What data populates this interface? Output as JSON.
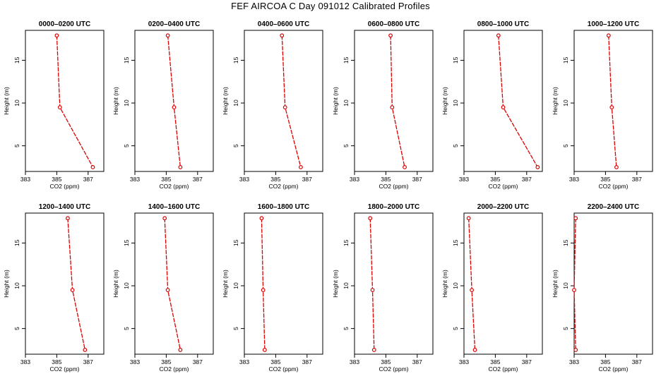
{
  "title": "FEF AIRCOA C  Day 091012  Calibrated Profiles",
  "colors": {
    "profile": "#dd0000",
    "axis": "#000000"
  },
  "chart_data": [
    {
      "type": "line",
      "title": "0000–0200 UTC",
      "xlabel": "CO2 (ppm)",
      "ylabel": "Height (m)",
      "xlim": [
        383,
        388
      ],
      "ylim": [
        2,
        18.5
      ],
      "xticks": [
        383,
        385,
        387
      ],
      "yticks": [
        5,
        10,
        15
      ],
      "series": [
        {
          "x": [
            385.0,
            385.2,
            387.3
          ],
          "y": [
            17.9,
            9.5,
            2.5
          ]
        }
      ]
    },
    {
      "type": "line",
      "title": "0200–0400 UTC",
      "xlabel": "CO2 (ppm)",
      "ylabel": "Height (m)",
      "xlim": [
        383,
        388
      ],
      "ylim": [
        2,
        18.5
      ],
      "xticks": [
        383,
        385,
        387
      ],
      "yticks": [
        5,
        10,
        15
      ],
      "series": [
        {
          "x": [
            385.1,
            385.5,
            385.9
          ],
          "y": [
            17.9,
            9.5,
            2.5
          ]
        }
      ]
    },
    {
      "type": "line",
      "title": "0400–0600 UTC",
      "xlabel": "CO2 (ppm)",
      "ylabel": "Height (m)",
      "xlim": [
        383,
        388
      ],
      "ylim": [
        2,
        18.5
      ],
      "xticks": [
        383,
        385,
        387
      ],
      "yticks": [
        5,
        10,
        15
      ],
      "series": [
        {
          "x": [
            385.4,
            385.6,
            386.6
          ],
          "y": [
            17.9,
            9.5,
            2.5
          ]
        }
      ]
    },
    {
      "type": "line",
      "title": "0600–0800 UTC",
      "xlabel": "CO2 (ppm)",
      "ylabel": "Height (m)",
      "xlim": [
        383,
        388
      ],
      "ylim": [
        2,
        18.5
      ],
      "xticks": [
        383,
        385,
        387
      ],
      "yticks": [
        5,
        10,
        15
      ],
      "series": [
        {
          "x": [
            385.3,
            385.4,
            386.2
          ],
          "y": [
            17.9,
            9.5,
            2.5
          ]
        }
      ]
    },
    {
      "type": "line",
      "title": "0800–1000 UTC",
      "xlabel": "CO2 (ppm)",
      "ylabel": "Height (m)",
      "xlim": [
        383,
        388
      ],
      "ylim": [
        2,
        18.5
      ],
      "xticks": [
        383,
        385,
        387
      ],
      "yticks": [
        5,
        10,
        15
      ],
      "series": [
        {
          "x": [
            385.2,
            385.5,
            387.7
          ],
          "y": [
            17.9,
            9.5,
            2.5
          ]
        }
      ]
    },
    {
      "type": "line",
      "title": "1000–1200 UTC",
      "xlabel": "CO2 (ppm)",
      "ylabel": "Height (m)",
      "xlim": [
        383,
        388
      ],
      "ylim": [
        2,
        18.5
      ],
      "xticks": [
        383,
        385,
        387
      ],
      "yticks": [
        5,
        10,
        15
      ],
      "series": [
        {
          "x": [
            385.2,
            385.4,
            385.7
          ],
          "y": [
            17.9,
            9.5,
            2.5
          ]
        }
      ]
    },
    {
      "type": "line",
      "title": "1200–1400 UTC",
      "xlabel": "CO2 (ppm)",
      "ylabel": "Height (m)",
      "xlim": [
        383,
        388
      ],
      "ylim": [
        2,
        18.5
      ],
      "xticks": [
        383,
        385,
        387
      ],
      "yticks": [
        5,
        10,
        15
      ],
      "series": [
        {
          "x": [
            385.7,
            386.0,
            386.8
          ],
          "y": [
            17.9,
            9.5,
            2.5
          ]
        }
      ]
    },
    {
      "type": "line",
      "title": "1400–1600 UTC",
      "xlabel": "CO2 (ppm)",
      "ylabel": "Height (m)",
      "xlim": [
        383,
        388
      ],
      "ylim": [
        2,
        18.5
      ],
      "xticks": [
        383,
        385,
        387
      ],
      "yticks": [
        5,
        10,
        15
      ],
      "series": [
        {
          "x": [
            384.9,
            385.1,
            385.9
          ],
          "y": [
            17.9,
            9.5,
            2.5
          ]
        }
      ]
    },
    {
      "type": "line",
      "title": "1600–1800 UTC",
      "xlabel": "CO2 (ppm)",
      "ylabel": "Height (m)",
      "xlim": [
        383,
        388
      ],
      "ylim": [
        2,
        18.5
      ],
      "xticks": [
        383,
        385,
        387
      ],
      "yticks": [
        5,
        10,
        15
      ],
      "series": [
        {
          "x": [
            384.1,
            384.2,
            384.3
          ],
          "y": [
            17.9,
            9.5,
            2.5
          ]
        }
      ]
    },
    {
      "type": "line",
      "title": "1800–2000 UTC",
      "xlabel": "CO2 (ppm)",
      "ylabel": "Height (m)",
      "xlim": [
        383,
        388
      ],
      "ylim": [
        2,
        18.5
      ],
      "xticks": [
        383,
        385,
        387
      ],
      "yticks": [
        5,
        10,
        15
      ],
      "series": [
        {
          "x": [
            384.0,
            384.15,
            384.25
          ],
          "y": [
            17.9,
            9.5,
            2.5
          ]
        }
      ]
    },
    {
      "type": "line",
      "title": "2000–2200 UTC",
      "xlabel": "CO2 (ppm)",
      "ylabel": "Height (m)",
      "xlim": [
        383,
        388
      ],
      "ylim": [
        2,
        18.5
      ],
      "xticks": [
        383,
        385,
        387
      ],
      "yticks": [
        5,
        10,
        15
      ],
      "series": [
        {
          "x": [
            383.3,
            383.5,
            383.7
          ],
          "y": [
            17.9,
            9.5,
            2.5
          ]
        }
      ]
    },
    {
      "type": "line",
      "title": "2200–2400 UTC",
      "xlabel": "CO2 (ppm)",
      "ylabel": "Height (m)",
      "xlim": [
        383,
        388
      ],
      "ylim": [
        2,
        18.5
      ],
      "xticks": [
        383,
        385,
        387
      ],
      "yticks": [
        5,
        10,
        15
      ],
      "series": [
        {
          "x": [
            383.1,
            383.0,
            383.1
          ],
          "y": [
            17.9,
            9.5,
            2.5
          ]
        }
      ]
    }
  ]
}
